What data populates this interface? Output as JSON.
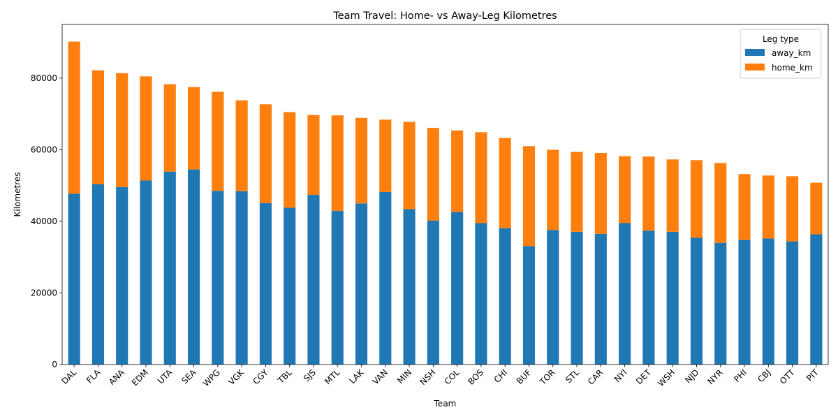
{
  "chart_data": {
    "type": "bar",
    "stacked": true,
    "title": "Team Travel: Home- vs Away-Leg Kilometres",
    "xlabel": "Team",
    "ylabel": "Kilometres",
    "ylim": [
      0,
      95000
    ],
    "yticks": [
      "0",
      "20000",
      "40000",
      "60000",
      "80000"
    ],
    "ytick_values": [
      0,
      20000,
      40000,
      60000,
      80000
    ],
    "grid": false,
    "legend": {
      "title": "Leg type",
      "position": "top-right"
    },
    "categories": [
      "DAL",
      "FLA",
      "ANA",
      "EDM",
      "UTA",
      "SEA",
      "WPG",
      "VGK",
      "CGY",
      "TBL",
      "SJS",
      "MTL",
      "LAK",
      "VAN",
      "MIN",
      "NSH",
      "COL",
      "BOS",
      "CHI",
      "BUF",
      "TOR",
      "STL",
      "CAR",
      "NYI",
      "DET",
      "WSH",
      "NJD",
      "NYR",
      "PHI",
      "CBJ",
      "OTT",
      "PIT"
    ],
    "series": [
      {
        "name": "away_km",
        "color": "#1f77b4",
        "values": [
          47700,
          50400,
          49600,
          51400,
          53900,
          54500,
          48500,
          48400,
          45100,
          43800,
          47400,
          42900,
          45000,
          48200,
          43400,
          40200,
          42600,
          39500,
          38100,
          33100,
          37600,
          37100,
          36500,
          39500,
          37400,
          37100,
          35400,
          34000,
          34800,
          35200,
          34400,
          36400
        ]
      },
      {
        "name": "home_km",
        "color": "#ff7f0e",
        "values": [
          42500,
          31800,
          31800,
          29100,
          24400,
          23000,
          27700,
          25400,
          27600,
          26700,
          22300,
          26700,
          23900,
          20200,
          24400,
          25900,
          22800,
          25400,
          25200,
          27900,
          22400,
          22300,
          22600,
          18700,
          20700,
          20200,
          21700,
          22300,
          18400,
          17600,
          18200,
          14400
        ]
      }
    ]
  }
}
